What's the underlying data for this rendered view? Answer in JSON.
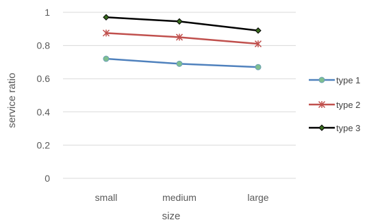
{
  "chart_data": {
    "type": "line",
    "title": "",
    "xlabel": "size",
    "ylabel": "service ratio",
    "categories": [
      "small",
      "medium",
      "large"
    ],
    "ylim": [
      0,
      1
    ],
    "yticks": [
      0,
      0.2,
      0.4,
      0.6,
      0.8,
      1
    ],
    "ytick_labels": [
      "0",
      "0.2",
      "0.4",
      "0.6",
      "0.8",
      "1"
    ],
    "grid": true,
    "legend_position": "right",
    "series": [
      {
        "name": "type 1",
        "values": [
          0.72,
          0.69,
          0.67
        ],
        "color": "#4F81BD",
        "marker": "circle"
      },
      {
        "name": "type 2",
        "values": [
          0.875,
          0.85,
          0.81
        ],
        "color": "#C0504D",
        "marker": "asterisk"
      },
      {
        "name": "type 3",
        "values": [
          0.97,
          0.945,
          0.89
        ],
        "color": "#000000",
        "marker": "diamond"
      }
    ]
  }
}
